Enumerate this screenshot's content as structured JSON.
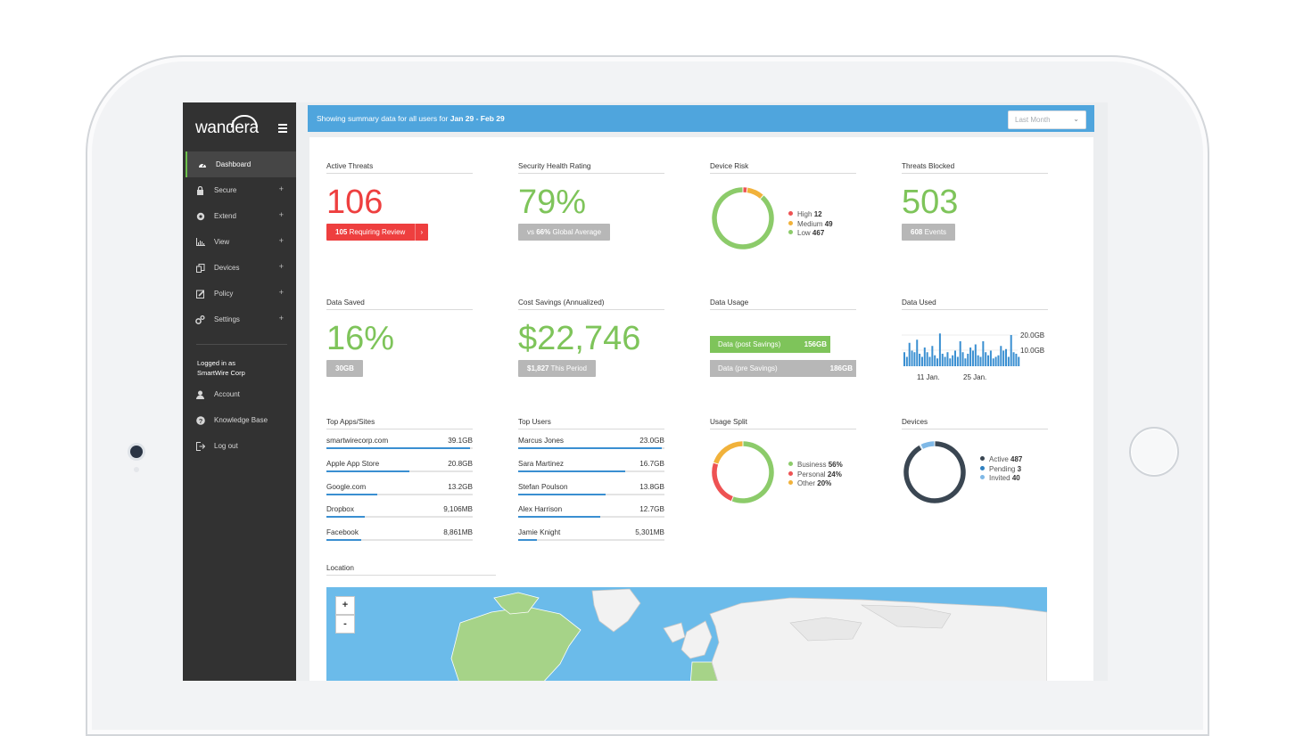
{
  "app": {
    "brand": "wandera",
    "banner_prefix": "Showing summary data for all users for",
    "banner_range": "Jan 29 - Feb 29",
    "range_select": "Last Month"
  },
  "sidebar": {
    "items": [
      {
        "label": "Dashboard",
        "icon": "dashboard-icon",
        "active": true
      },
      {
        "label": "Secure",
        "icon": "lock-icon",
        "expand": "+"
      },
      {
        "label": "Extend",
        "icon": "extend-icon",
        "expand": "+"
      },
      {
        "label": "View",
        "icon": "bar-chart-icon",
        "expand": "+"
      },
      {
        "label": "Devices",
        "icon": "devices-icon",
        "expand": "+"
      },
      {
        "label": "Policy",
        "icon": "edit-icon",
        "expand": "+"
      },
      {
        "label": "Settings",
        "icon": "gears-icon",
        "expand": "+"
      }
    ],
    "logged_in_as": "Logged in as",
    "company": "SmartWire Corp",
    "account_items": [
      {
        "label": "Account",
        "icon": "user-icon"
      },
      {
        "label": "Knowledge Base",
        "icon": "help-icon"
      },
      {
        "label": "Log out",
        "icon": "logout-icon"
      }
    ]
  },
  "widgets": {
    "active_threats": {
      "title": "Active Threats",
      "value": "106",
      "pill_count": "105",
      "pill_text": "Requiring Review",
      "pill_arrow": "›"
    },
    "security_health": {
      "title": "Security Health Rating",
      "value": "79%",
      "pill_prefix": "vs",
      "pill_pct": "66%",
      "pill_suffix": "Global Average"
    },
    "device_risk": {
      "title": "Device Risk",
      "legend": [
        {
          "label": "High",
          "value": "12",
          "color": "#ee5253"
        },
        {
          "label": "Medium",
          "value": "49",
          "color": "#f1b23b"
        },
        {
          "label": "Low",
          "value": "467",
          "color": "#8ccb6a"
        }
      ]
    },
    "threats_blocked": {
      "title": "Threats Blocked",
      "value": "503",
      "pill_count": "608",
      "pill_text": "Events"
    },
    "data_saved": {
      "title": "Data Saved",
      "value": "16%",
      "pill": "30GB"
    },
    "cost_savings": {
      "title": "Cost Savings (Annualized)",
      "value": "$22,746",
      "pill_amount": "$1,827",
      "pill_text": "This Period"
    },
    "data_usage": {
      "title": "Data Usage",
      "post_label": "Data (post Savings)",
      "post_value": "156GB",
      "post_color": "#7ec45a",
      "pre_label": "Data (pre Savings)",
      "pre_value": "186GB",
      "pre_color": "#b7b7b7"
    },
    "data_used": {
      "title": "Data Used",
      "y_top": "20.0GB",
      "y_mid": "10.0GB",
      "x1": "11 Jan.",
      "x2": "25 Jan."
    },
    "top_apps": {
      "title": "Top Apps/Sites",
      "rows": [
        {
          "name": "smartwirecorp.com",
          "value": "39.1GB",
          "frac": 0.98
        },
        {
          "name": "Apple App Store",
          "value": "20.8GB",
          "frac": 0.57
        },
        {
          "name": "Google.com",
          "value": "13.2GB",
          "frac": 0.35
        },
        {
          "name": "Dropbox",
          "value": "9,106MB",
          "frac": 0.26
        },
        {
          "name": "Facebook",
          "value": "8,861MB",
          "frac": 0.24
        }
      ]
    },
    "top_users": {
      "title": "Top Users",
      "rows": [
        {
          "name": "Marcus Jones",
          "value": "23.0GB",
          "frac": 0.98
        },
        {
          "name": "Sara Martinez",
          "value": "16.7GB",
          "frac": 0.73
        },
        {
          "name": "Stefan Poulson",
          "value": "13.8GB",
          "frac": 0.6
        },
        {
          "name": "Alex Harrison",
          "value": "12.7GB",
          "frac": 0.56
        },
        {
          "name": "Jamie Knight",
          "value": "5,301MB",
          "frac": 0.13
        }
      ]
    },
    "usage_split": {
      "title": "Usage Split",
      "legend": [
        {
          "label": "Business",
          "value": "56%",
          "color": "#8ccb6a"
        },
        {
          "label": "Personal",
          "value": "24%",
          "color": "#ee5253"
        },
        {
          "label": "Other",
          "value": "20%",
          "color": "#f1b23b"
        }
      ]
    },
    "devices": {
      "title": "Devices",
      "legend": [
        {
          "label": "Active",
          "value": "487",
          "color": "#3a4652"
        },
        {
          "label": "Pending",
          "value": "3",
          "color": "#2f80c0"
        },
        {
          "label": "Invited",
          "value": "40",
          "color": "#7fb8e6"
        }
      ]
    },
    "location": {
      "title": "Location",
      "zoom_in": "+",
      "zoom_out": "-"
    }
  },
  "chart_data": [
    {
      "type": "pie",
      "title": "Device Risk",
      "labels": [
        "High",
        "Medium",
        "Low"
      ],
      "values": [
        12,
        49,
        467
      ],
      "colors": [
        "#ee5253",
        "#f1b23b",
        "#8ccb6a"
      ]
    },
    {
      "type": "pie",
      "title": "Usage Split",
      "labels": [
        "Business",
        "Personal",
        "Other"
      ],
      "values": [
        56,
        24,
        20
      ],
      "colors": [
        "#8ccb6a",
        "#ee5253",
        "#f1b23b"
      ]
    },
    {
      "type": "pie",
      "title": "Devices",
      "labels": [
        "Active",
        "Pending",
        "Invited"
      ],
      "values": [
        487,
        3,
        40
      ],
      "colors": [
        "#3a4652",
        "#2f80c0",
        "#7fb8e6"
      ]
    },
    {
      "type": "bar",
      "title": "Data Used",
      "ylim": [
        0,
        25
      ],
      "y_ticks": [
        "10.0GB",
        "20.0GB"
      ],
      "x_ticks": [
        "11 Jan.",
        "25 Jan."
      ],
      "values": [
        9,
        6,
        15,
        10,
        9,
        17,
        8,
        6,
        12,
        9,
        6,
        13,
        7,
        5,
        21,
        8,
        6,
        9,
        5,
        7,
        10,
        6,
        16,
        9,
        5,
        8,
        12,
        10,
        14,
        7,
        6,
        16,
        9,
        7,
        10,
        5,
        6,
        7,
        13,
        10,
        11,
        6,
        20,
        9,
        8,
        6
      ]
    }
  ]
}
